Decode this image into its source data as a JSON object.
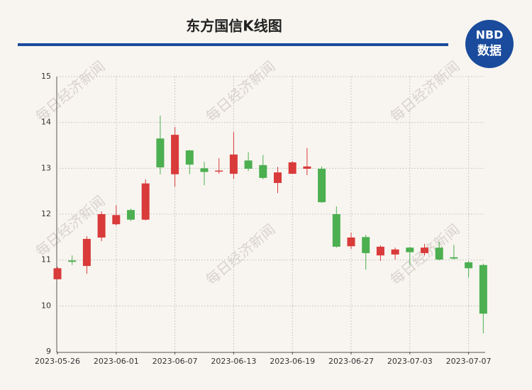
{
  "chart_data": {
    "type": "candlestick",
    "title": "东方国信K线图",
    "logo": {
      "top": "NBD",
      "bottom": "数据"
    },
    "watermark": "每日经济新闻",
    "categories": [
      "2023-05-26",
      null,
      null,
      null,
      "2023-06-01",
      null,
      null,
      null,
      "2023-06-07",
      null,
      null,
      null,
      "2023-06-13",
      null,
      null,
      null,
      "2023-06-19",
      null,
      null,
      null,
      "2023-06-27",
      null,
      null,
      null,
      "2023-07-03",
      null,
      null,
      null,
      "2023-07-07",
      null
    ],
    "open": [
      10.58,
      10.99,
      10.87,
      11.49,
      11.78,
      12.09,
      11.88,
      13.65,
      12.87,
      13.39,
      13.0,
      12.93,
      12.88,
      13.17,
      13.07,
      12.68,
      12.88,
      12.99,
      12.99,
      12.0,
      11.3,
      11.5,
      11.1,
      11.12,
      11.27,
      11.15,
      11.27,
      11.06,
      10.95,
      10.89
    ],
    "high": [
      10.85,
      11.1,
      11.52,
      12.06,
      12.19,
      12.12,
      12.76,
      14.15,
      13.9,
      13.4,
      13.14,
      13.22,
      13.79,
      13.35,
      13.29,
      13.03,
      13.16,
      13.44,
      13.04,
      12.17,
      11.6,
      11.55,
      11.32,
      11.27,
      11.29,
      11.35,
      11.4,
      11.33,
      10.98,
      10.92
    ],
    "low": [
      10.58,
      10.89,
      10.7,
      11.41,
      11.75,
      11.85,
      11.86,
      12.87,
      12.6,
      12.87,
      12.63,
      12.88,
      12.77,
      12.94,
      12.76,
      12.46,
      12.87,
      12.85,
      12.25,
      11.27,
      11.24,
      10.79,
      10.98,
      11.01,
      10.89,
      11.1,
      10.99,
      11.01,
      10.62,
      9.4
    ],
    "close": [
      10.82,
      10.96,
      11.46,
      12.0,
      11.98,
      11.88,
      12.67,
      13.02,
      13.73,
      13.08,
      12.92,
      12.95,
      13.3,
      12.99,
      12.79,
      12.91,
      13.13,
      13.04,
      12.26,
      11.29,
      11.49,
      11.15,
      11.29,
      11.23,
      11.17,
      11.27,
      11.01,
      11.03,
      10.82,
      9.83
    ],
    "up_color": "#d93a3a",
    "down_color": "#4caf50",
    "ylim": [
      9,
      15
    ],
    "yticks": [
      9,
      10,
      11,
      12,
      13,
      14,
      15
    ],
    "grid": true
  }
}
